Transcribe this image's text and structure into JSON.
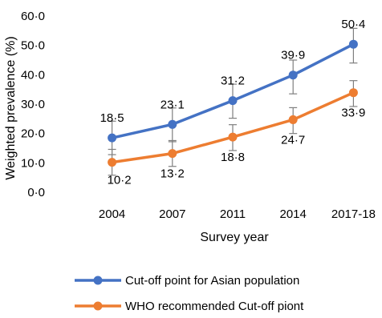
{
  "chart_data": {
    "type": "line",
    "title": "",
    "xlabel": "Survey year",
    "ylabel": "Weighted prevalence (%)",
    "categories": [
      "2004",
      "2007",
      "2011",
      "2014",
      "2017-18"
    ],
    "ylim": [
      0,
      60
    ],
    "yticks": [
      "0·0",
      "10·0",
      "20·0",
      "30·0",
      "40·0",
      "50·0",
      "60·0"
    ],
    "grid": false,
    "legend_position": "bottom",
    "series": [
      {
        "name": "Cut-off point for Asian population",
        "color": "#4472C4",
        "values": [
          18.5,
          23.1,
          31.2,
          39.9,
          50.4
        ],
        "labels": [
          "18·5",
          "23·1",
          "31·2",
          "39·9",
          "50·4"
        ],
        "error_low": [
          12.8,
          17.2,
          25.2,
          33.5,
          44.0
        ],
        "error_high": [
          24.2,
          28.7,
          36.8,
          45.0,
          55.8
        ]
      },
      {
        "name": "WHO recommended Cut-off piont",
        "color": "#ED7D31",
        "values": [
          10.2,
          13.2,
          18.8,
          24.7,
          33.9
        ],
        "labels": [
          "10·2",
          "13·2",
          "18·8",
          "24·7",
          "33·9"
        ],
        "error_low": [
          5.8,
          8.8,
          14.2,
          20.0,
          29.2
        ],
        "error_high": [
          14.6,
          17.6,
          23.0,
          28.8,
          38.0
        ]
      }
    ]
  }
}
